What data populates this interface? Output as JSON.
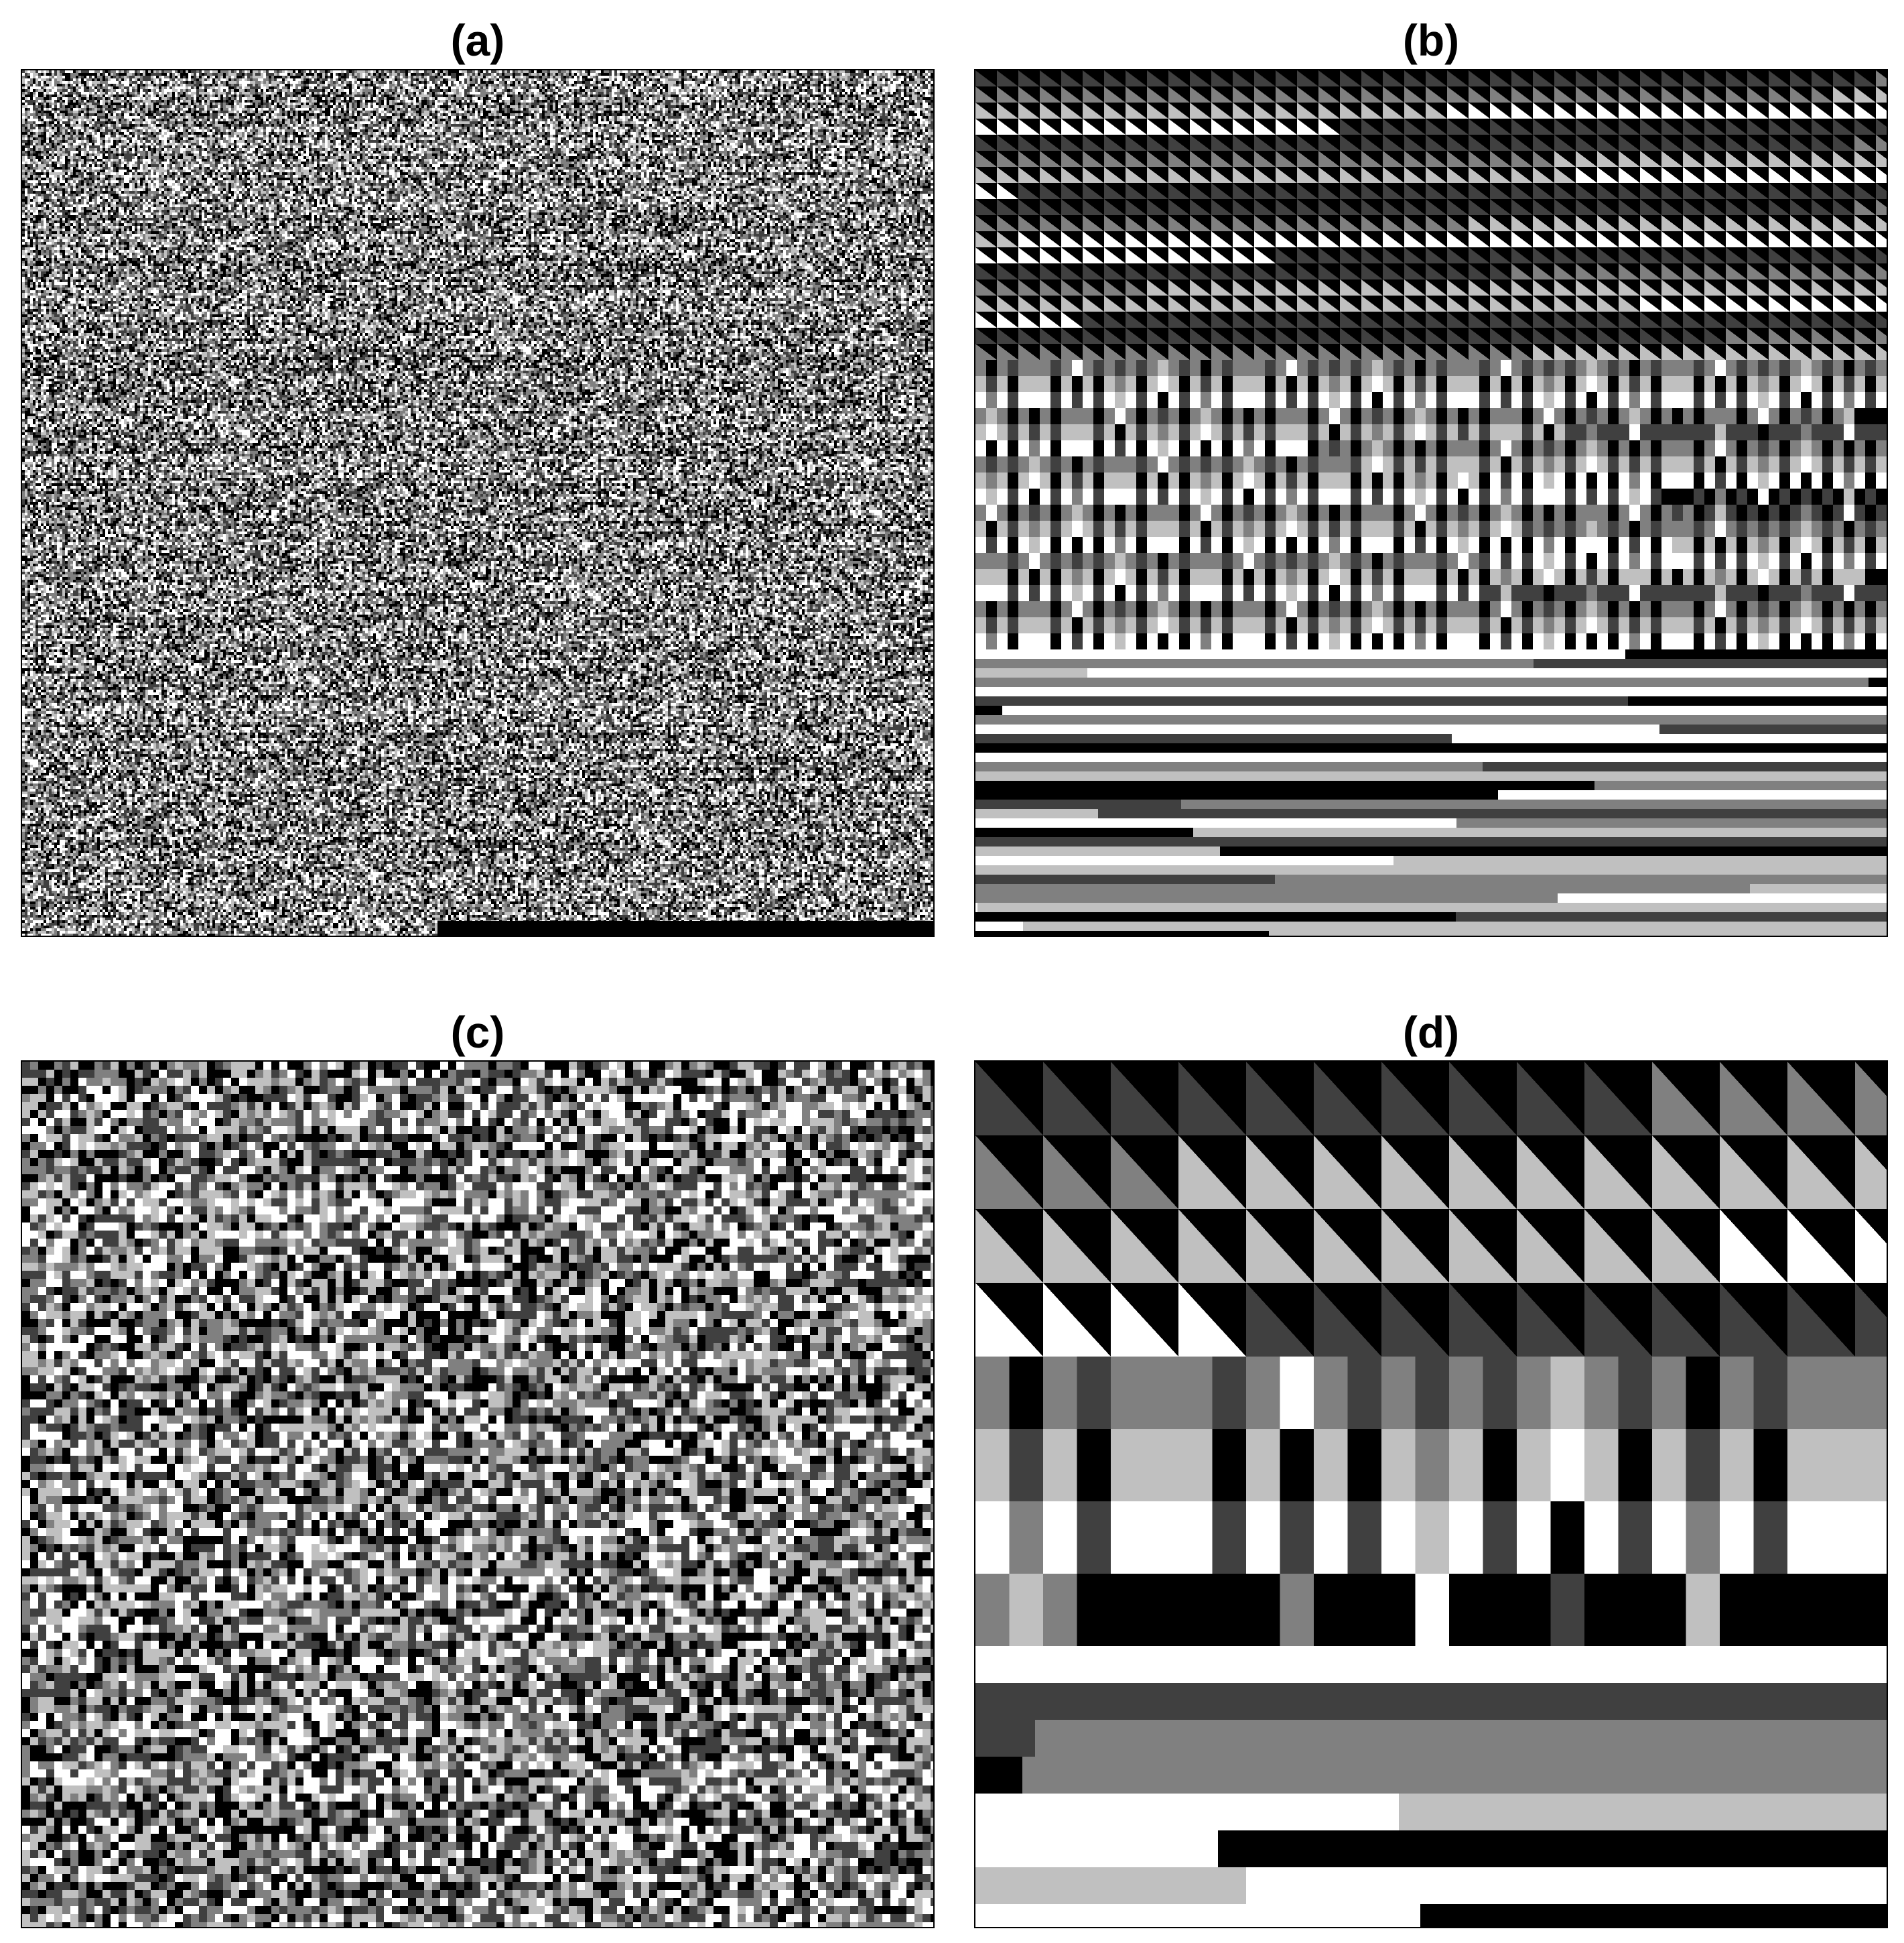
{
  "panels": [
    {
      "id": "a",
      "label": "(a)",
      "pattern": "fine-noise-texture"
    },
    {
      "id": "b",
      "label": "(b)",
      "pattern": "fine-grayscale-grid-triangles-stripes"
    },
    {
      "id": "c",
      "label": "(c)",
      "pattern": "coarse-noise-texture"
    },
    {
      "id": "d",
      "label": "(d)",
      "pattern": "coarse-grayscale-grid-triangles-stripes"
    }
  ],
  "colors": {
    "black": "#000000",
    "dark_gray": "#404040",
    "mid_gray": "#808080",
    "light_gray": "#c0c0c0",
    "white": "#ffffff"
  }
}
